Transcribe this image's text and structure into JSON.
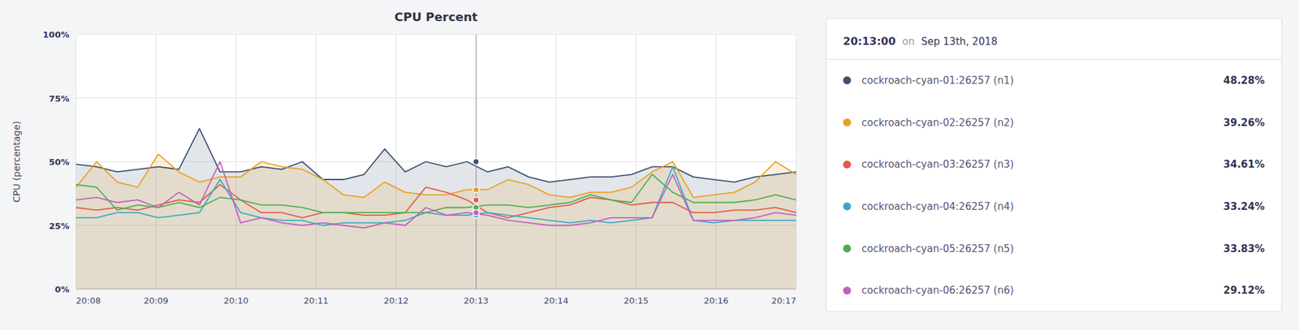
{
  "chart_data": {
    "type": "line",
    "title": "CPU Percent",
    "y_label": "CPU (percentage)",
    "x": [
      0,
      0.2571428571428571,
      0.5142857142857142,
      0.7714285714285714,
      1.0285714285714285,
      1.2857142857142856,
      1.5428571428571427,
      1.8,
      2.057142857142857,
      2.314285714285714,
      2.571428571428571,
      2.8285714285714283,
      3.0857142857142854,
      3.342857142857143,
      3.6,
      3.857142857142857,
      4.114285714285714,
      4.371428571428571,
      4.628571428571428,
      4.885714285714285,
      5.142857142857142,
      5.4,
      5.657142857142857,
      5.914285714285714,
      6.171428571428571,
      6.428571428571428,
      6.685714285714285,
      6.942857142857143,
      7.2,
      7.457142857142857,
      7.714285714285714,
      7.971428571428571,
      8.228571428571428,
      8.485714285714286,
      8.742857142857142,
      9
    ],
    "xlim": [
      0,
      9
    ],
    "xticks": [
      {
        "value": 0,
        "label": "20:08"
      },
      {
        "value": 1,
        "label": "20:09"
      },
      {
        "value": 2,
        "label": "20:10"
      },
      {
        "value": 3,
        "label": "20:11"
      },
      {
        "value": 4,
        "label": "20:12"
      },
      {
        "value": 5,
        "label": "20:13"
      },
      {
        "value": 6,
        "label": "20:14"
      },
      {
        "value": 7,
        "label": "20:15"
      },
      {
        "value": 8,
        "label": "20:16"
      },
      {
        "value": 9,
        "label": "20:17"
      }
    ],
    "ylim": [
      0,
      100
    ],
    "yticks": [
      {
        "value": 0,
        "label": "0%"
      },
      {
        "value": 25,
        "label": "25%"
      },
      {
        "value": 50,
        "label": "50%"
      },
      {
        "value": 75,
        "label": "75%"
      },
      {
        "value": 100,
        "label": "100%"
      }
    ],
    "grid": true,
    "series": [
      {
        "name": "cockroach-cyan-01:26257 (n1)",
        "color": "#3d4f6e",
        "type": "area",
        "values": [
          49,
          48,
          46,
          47,
          48,
          47,
          63,
          46,
          46,
          48,
          47,
          50,
          43,
          43,
          45,
          55,
          46,
          50,
          48,
          50,
          46,
          48,
          44,
          42,
          43,
          44,
          44,
          45,
          48,
          48,
          44,
          43,
          42,
          44,
          45,
          46
        ]
      },
      {
        "name": "cockroach-cyan-02:26257 (n2)",
        "color": "#e8a020",
        "type": "area",
        "values": [
          40,
          50,
          42,
          40,
          53,
          46,
          42,
          44,
          44,
          50,
          48,
          47,
          43,
          37,
          36,
          42,
          38,
          37,
          37,
          39,
          39,
          43,
          41,
          37,
          36,
          38,
          38,
          40,
          46,
          50,
          36,
          37,
          38,
          42,
          50,
          45
        ]
      },
      {
        "name": "cockroach-cyan-03:26257 (n3)",
        "color": "#e05c48",
        "type": "line",
        "values": [
          32,
          31,
          32,
          31,
          33,
          35,
          34,
          41,
          35,
          30,
          30,
          28,
          30,
          30,
          29,
          29,
          30,
          40,
          38,
          35,
          30,
          28,
          30,
          32,
          33,
          36,
          35,
          33,
          34,
          34,
          30,
          30,
          31,
          31,
          32,
          30
        ]
      },
      {
        "name": "cockroach-cyan-04:26257 (n4)",
        "color": "#38a8c8",
        "type": "line",
        "values": [
          28,
          28,
          30,
          30,
          28,
          29,
          30,
          43,
          30,
          28,
          27,
          27,
          25,
          26,
          26,
          26,
          27,
          30,
          29,
          29,
          30,
          29,
          28,
          27,
          26,
          27,
          26,
          27,
          28,
          48,
          27,
          26,
          27,
          27,
          27,
          27
        ]
      },
      {
        "name": "cockroach-cyan-05:26257 (n5)",
        "color": "#4aaf50",
        "type": "line",
        "values": [
          41,
          40,
          31,
          33,
          32,
          34,
          32,
          36,
          35,
          33,
          33,
          32,
          30,
          30,
          30,
          30,
          30,
          30,
          32,
          32,
          33,
          33,
          32,
          33,
          34,
          37,
          35,
          34,
          45,
          38,
          34,
          34,
          34,
          35,
          37,
          35
        ]
      },
      {
        "name": "cockroach-cyan-06:26257 (n6)",
        "color": "#c060c0",
        "type": "line",
        "values": [
          35,
          36,
          34,
          35,
          32,
          38,
          33,
          50,
          26,
          28,
          26,
          25,
          26,
          25,
          24,
          26,
          25,
          32,
          29,
          30,
          29,
          27,
          26,
          25,
          25,
          26,
          28,
          28,
          28,
          45,
          27,
          27,
          27,
          28,
          30,
          29
        ]
      }
    ],
    "tooltip": {
      "x": 5,
      "time": "20:13:00",
      "on": "on",
      "date": "Sep 13th, 2018",
      "values": [
        48.28,
        39.26,
        34.61,
        33.24,
        33.83,
        29.12
      ],
      "value_labels": [
        "48.28%",
        "39.26%",
        "34.61%",
        "33.24%",
        "33.83%",
        "29.12%"
      ]
    }
  }
}
